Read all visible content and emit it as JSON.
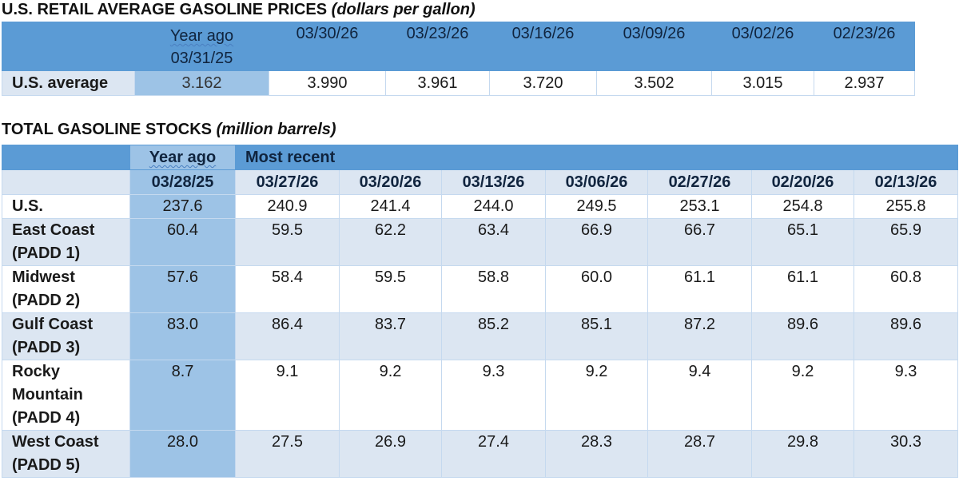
{
  "prices": {
    "title": "U.S. RETAIL AVERAGE GASOLINE PRICES",
    "units": "(dollars per gallon)",
    "year_ago_label": "Year ago",
    "year_ago_date": "03/31/25",
    "dates": [
      "03/30/26",
      "03/23/26",
      "03/16/26",
      "03/09/26",
      "03/02/26",
      "02/23/26"
    ],
    "row_label": "U.S. average",
    "year_ago_value": "3.162",
    "values": [
      "3.990",
      "3.961",
      "3.720",
      "3.502",
      "3.015",
      "2.937"
    ]
  },
  "stocks": {
    "title": "TOTAL GASOLINE STOCKS",
    "units": "(million barrels)",
    "year_ago_label": "Year ago",
    "most_recent_label": "Most recent",
    "year_ago_date": "03/28/25",
    "dates": [
      "03/27/26",
      "03/20/26",
      "03/13/26",
      "03/06/26",
      "02/27/26",
      "02/20/26",
      "02/13/26"
    ],
    "rows": [
      {
        "label_lines": [
          "U.S."
        ],
        "year_ago": "237.6",
        "values": [
          "240.9",
          "241.4",
          "244.0",
          "249.5",
          "253.1",
          "254.8",
          "255.8"
        ]
      },
      {
        "label_lines": [
          "East Coast",
          "(PADD 1)"
        ],
        "year_ago": "60.4",
        "values": [
          "59.5",
          "62.2",
          "63.4",
          "66.9",
          "66.7",
          "65.1",
          "65.9"
        ]
      },
      {
        "label_lines": [
          "Midwest",
          "(PADD 2)"
        ],
        "year_ago": "57.6",
        "values": [
          "58.4",
          "59.5",
          "58.8",
          "60.0",
          "61.1",
          "61.1",
          "60.8"
        ]
      },
      {
        "label_lines": [
          "Gulf Coast",
          "(PADD 3)"
        ],
        "year_ago": "83.0",
        "values": [
          "86.4",
          "83.7",
          "85.2",
          "85.1",
          "87.2",
          "89.6",
          "89.6"
        ]
      },
      {
        "label_lines": [
          "Rocky",
          "Mountain",
          "(PADD 4)"
        ],
        "year_ago": "8.7",
        "values": [
          "9.1",
          "9.2",
          "9.3",
          "9.2",
          "9.4",
          "9.2",
          "9.3"
        ]
      },
      {
        "label_lines": [
          "West Coast",
          "(PADD 5)"
        ],
        "year_ago": "28.0",
        "values": [
          "27.5",
          "26.9",
          "27.4",
          "28.3",
          "28.7",
          "29.8",
          "30.3"
        ]
      }
    ]
  }
}
